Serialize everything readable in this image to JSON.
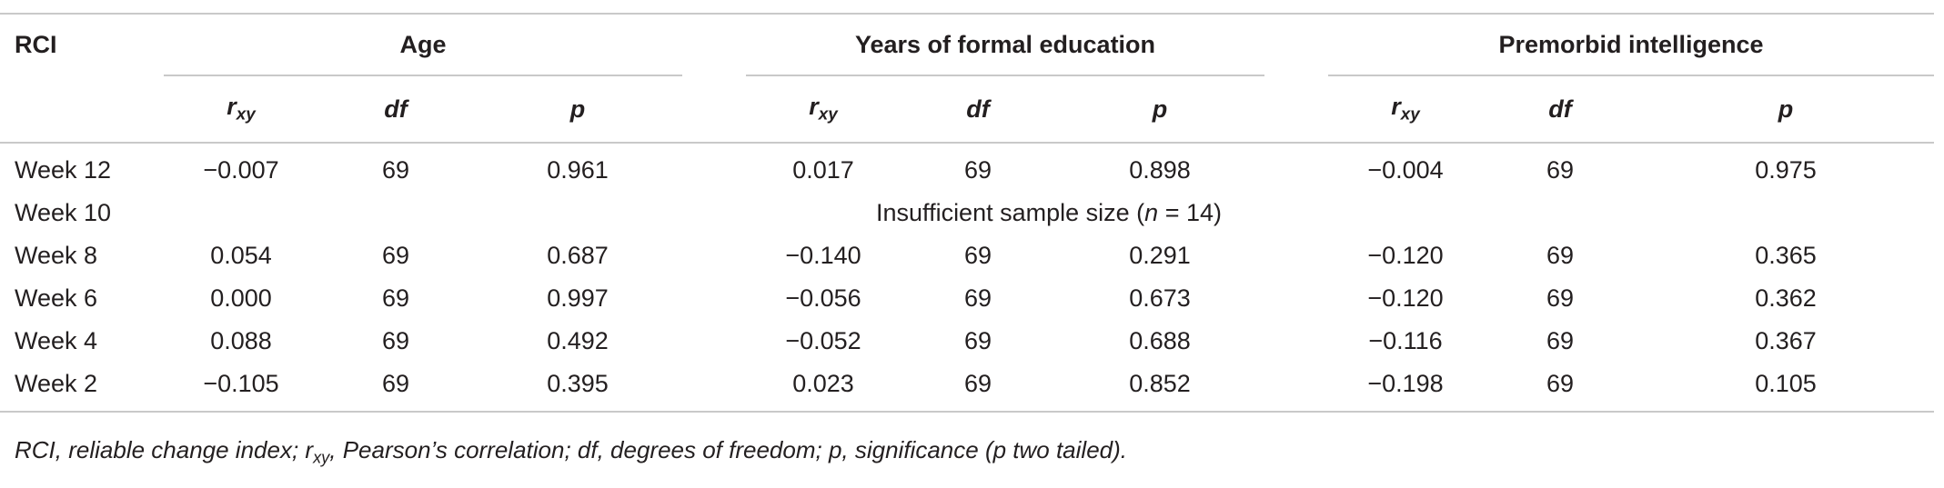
{
  "header": {
    "rci": "RCI",
    "groups": [
      "Age",
      "Years of formal education",
      "Premorbid intelligence"
    ],
    "r_main": "r",
    "r_sub": "xy",
    "df": "df",
    "p": "p"
  },
  "rows": [
    {
      "label": "Week 12",
      "cells": [
        "−0.007",
        "69",
        "0.961",
        "0.017",
        "69",
        "0.898",
        "−0.004",
        "69",
        "0.975"
      ]
    },
    {
      "label": "Week 10",
      "merged_pre": "Insufficient sample size (",
      "merged_n": "n",
      "merged_post": " = 14)"
    },
    {
      "label": "Week 8",
      "cells": [
        "0.054",
        "69",
        "0.687",
        "−0.140",
        "69",
        "0.291",
        "−0.120",
        "69",
        "0.365"
      ]
    },
    {
      "label": "Week 6",
      "cells": [
        "0.000",
        "69",
        "0.997",
        "−0.056",
        "69",
        "0.673",
        "−0.120",
        "69",
        "0.362"
      ]
    },
    {
      "label": "Week 4",
      "cells": [
        "0.088",
        "69",
        "0.492",
        "−0.052",
        "69",
        "0.688",
        "−0.116",
        "69",
        "0.367"
      ]
    },
    {
      "label": "Week 2",
      "cells": [
        "−0.105",
        "69",
        "0.395",
        "0.023",
        "69",
        "0.852",
        "−0.198",
        "69",
        "0.105"
      ]
    }
  ],
  "footnote": {
    "pre": "RCI, reliable change index; r",
    "sub": "xy",
    "post": ", Pearson’s correlation; df, degrees of freedom; p, significance (p two tailed)."
  }
}
